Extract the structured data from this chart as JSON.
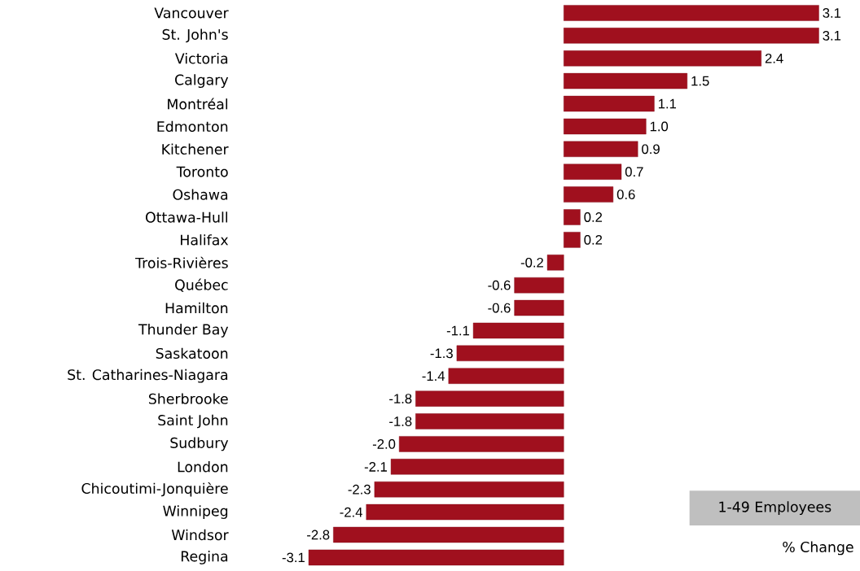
{
  "chart_data": {
    "type": "bar",
    "orientation": "horizontal",
    "value_labels": [
      "3.1",
      "3.1",
      "2.4",
      "1.5",
      "1.1",
      "1.0",
      "0.9",
      "0.7",
      "0.6",
      "0.2",
      "0.2",
      "-0.2",
      "-0.6",
      "-0.6",
      "-1.1",
      "-1.3",
      "-1.4",
      "-1.8",
      "-1.8",
      "-2.0",
      "-2.1",
      "-2.3",
      "-2.4",
      "-2.8",
      "-3.1"
    ],
    "color": "#a0101e",
    "categories": [
      "Vancouver",
      "St. John's",
      "Victoria",
      "Calgary",
      "Montréal",
      "Edmonton",
      "Kitchener",
      "Toronto",
      "Oshawa",
      "Ottawa-Hull",
      "Halifax",
      "Trois-Rivières",
      "Québec",
      "Hamilton",
      "Thunder Bay",
      "Saskatoon",
      "St. Catharines-Niagara",
      "Sherbrooke",
      "Saint John",
      "Sudbury",
      "London",
      "Chicoutimi-Jonquière",
      "Winnipeg",
      "Windsor",
      "Regina"
    ],
    "values": [
      3.1,
      3.1,
      2.4,
      1.5,
      1.1,
      1.0,
      0.9,
      0.7,
      0.6,
      0.2,
      0.2,
      -0.2,
      -0.6,
      -0.6,
      -1.1,
      -1.3,
      -1.4,
      -1.8,
      -1.8,
      -2.0,
      -2.1,
      -2.3,
      -2.4,
      -2.8,
      -3.1
    ],
    "annotations": [
      "1-49 Employees",
      "% Change"
    ]
  }
}
